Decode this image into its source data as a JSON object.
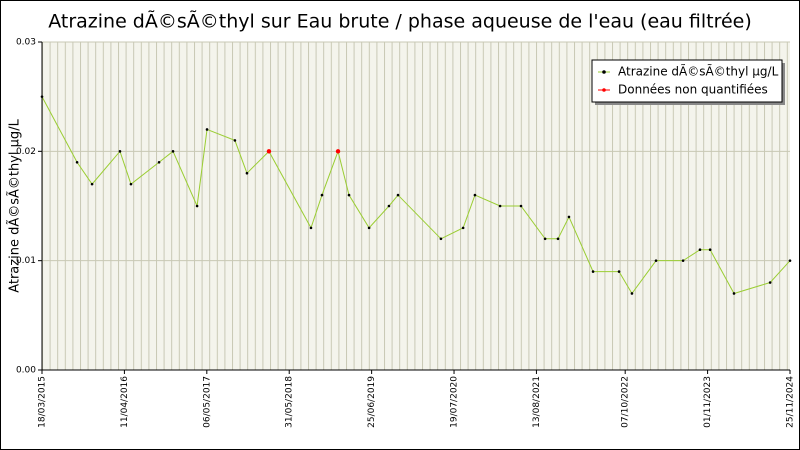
{
  "chart_data": {
    "type": "line",
    "title": "Atrazine dÃ©sÃ©thyl sur Eau brute / phase aqueuse de l'eau (eau filtrée)",
    "y_label": "Atrazine dÃ©sÃ©thyl µg/L",
    "x": [
      "2015-03-18",
      "2015-08-31",
      "2015-11-10",
      "2016-03-21",
      "2016-05-12",
      "2016-09-22",
      "2016-11-27",
      "2017-03-21",
      "2017-05-07",
      "2017-09-16",
      "2017-11-12",
      "2018-02-24",
      "2018-09-11",
      "2018-11-02",
      "2019-01-17",
      "2019-03-10",
      "2019-06-13",
      "2019-09-15",
      "2019-10-28",
      "2020-05-18",
      "2020-08-31",
      "2020-10-26",
      "2021-02-22",
      "2021-06-01",
      "2021-09-23",
      "2021-11-23",
      "2022-01-14",
      "2022-05-08",
      "2022-09-08",
      "2022-11-08",
      "2023-03-02",
      "2023-07-08",
      "2023-09-26",
      "2023-11-13",
      "2024-03-05",
      "2024-08-23",
      "2024-11-25"
    ],
    "series": [
      {
        "name": "Atrazine dÃ©sÃ©thyl µg/L",
        "color": "#9acd32",
        "marker_color": "#000000",
        "values": [
          0.025,
          0.019,
          0.017,
          0.02,
          0.017,
          0.019,
          0.02,
          0.015,
          0.022,
          0.021,
          0.018,
          0.02,
          0.013,
          0.016,
          0.02,
          0.016,
          0.013,
          0.015,
          0.016,
          0.012,
          0.013,
          0.016,
          0.015,
          0.015,
          0.012,
          0.012,
          0.014,
          0.009,
          0.009,
          0.007,
          0.01,
          0.01,
          0.011,
          0.011,
          0.007,
          0.008,
          0.01
        ]
      },
      {
        "name": "Données non quantifiées",
        "color": "#ff0000",
        "marker_color": "#ff0000",
        "values": [
          null,
          null,
          null,
          null,
          null,
          null,
          null,
          null,
          null,
          null,
          null,
          0.02,
          null,
          null,
          0.02,
          null,
          null,
          null,
          null,
          null,
          null,
          null,
          null,
          null,
          null,
          null,
          null,
          null,
          null,
          null,
          null,
          null,
          null,
          null,
          null,
          null,
          null
        ]
      }
    ],
    "xlim": [
      "2015-03-18",
      "2024-11-25"
    ],
    "xticks": [
      {
        "value": "2015-03-18",
        "label": "18/03/2015"
      },
      {
        "value": "2016-04-11",
        "label": "11/04/2016"
      },
      {
        "value": "2017-05-06",
        "label": "06/05/2017"
      },
      {
        "value": "2018-05-31",
        "label": "31/05/2018"
      },
      {
        "value": "2019-06-25",
        "label": "25/06/2019"
      },
      {
        "value": "2020-07-19",
        "label": "19/07/2020"
      },
      {
        "value": "2021-08-13",
        "label": "13/08/2021"
      },
      {
        "value": "2022-10-07",
        "label": "07/10/2022"
      },
      {
        "value": "2023-11-01",
        "label": "01/11/2023"
      },
      {
        "value": "2024-11-25",
        "label": "25/11/2024"
      }
    ],
    "ylim": [
      0,
      0.03
    ],
    "yticks": [
      {
        "value": 0,
        "label": "0.00"
      },
      0.01,
      0.02,
      0.03
    ],
    "grid": true,
    "legend": "top-right"
  }
}
